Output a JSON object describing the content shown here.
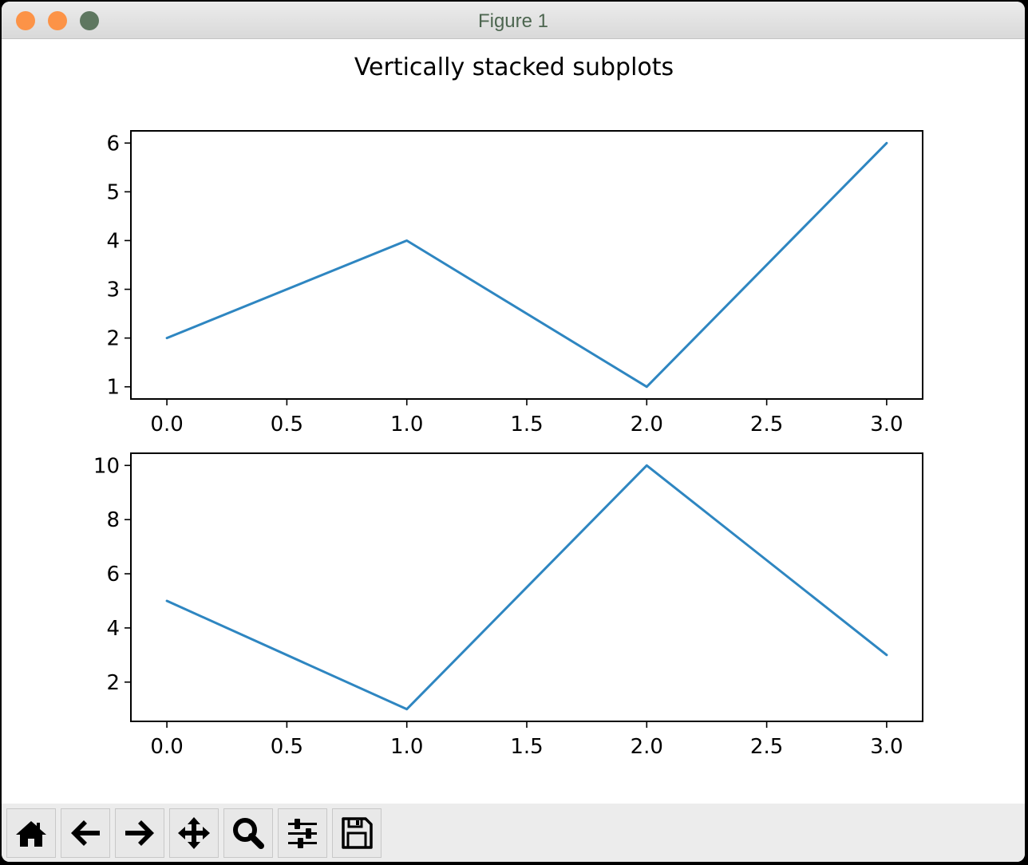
{
  "window": {
    "title": "Figure 1",
    "traffic_lights": [
      {
        "name": "close",
        "color": "#fc9347"
      },
      {
        "name": "minimize",
        "color": "#fc9347"
      },
      {
        "name": "zoom",
        "color": "#5e7760"
      }
    ]
  },
  "figure": {
    "suptitle": "Vertically stacked subplots"
  },
  "chart_data": [
    {
      "type": "line",
      "x": [
        0,
        1,
        2,
        3
      ],
      "series": [
        {
          "values": [
            2,
            4,
            1,
            6
          ],
          "color": "#2e86c1"
        }
      ],
      "xlim": [
        -0.15,
        3.15
      ],
      "ylim": [
        0.75,
        6.25
      ],
      "xticks": [
        "0.0",
        "0.5",
        "1.0",
        "1.5",
        "2.0",
        "2.5",
        "3.0"
      ],
      "xtick_values": [
        0,
        0.5,
        1,
        1.5,
        2,
        2.5,
        3
      ],
      "yticks": [
        "1",
        "2",
        "3",
        "4",
        "5",
        "6"
      ],
      "ytick_values": [
        1,
        2,
        3,
        4,
        5,
        6
      ],
      "grid": false
    },
    {
      "type": "line",
      "x": [
        0,
        1,
        2,
        3
      ],
      "series": [
        {
          "values": [
            5,
            1,
            10,
            3
          ],
          "color": "#2e86c1"
        }
      ],
      "xlim": [
        -0.15,
        3.15
      ],
      "ylim": [
        0.55,
        10.45
      ],
      "xticks": [
        "0.0",
        "0.5",
        "1.0",
        "1.5",
        "2.0",
        "2.5",
        "3.0"
      ],
      "xtick_values": [
        0,
        0.5,
        1,
        1.5,
        2,
        2.5,
        3
      ],
      "yticks": [
        "2",
        "4",
        "6",
        "8",
        "10"
      ],
      "ytick_values": [
        2,
        4,
        6,
        8,
        10
      ],
      "grid": false
    }
  ],
  "toolbar": {
    "buttons": [
      {
        "name": "home-button",
        "icon": "home-icon"
      },
      {
        "name": "back-button",
        "icon": "arrow-left-icon"
      },
      {
        "name": "forward-button",
        "icon": "arrow-right-icon"
      },
      {
        "name": "pan-button",
        "icon": "move-icon"
      },
      {
        "name": "zoom-button",
        "icon": "magnifier-icon"
      },
      {
        "name": "configure-subplots-button",
        "icon": "sliders-icon"
      },
      {
        "name": "save-button",
        "icon": "floppy-disk-icon"
      }
    ]
  }
}
